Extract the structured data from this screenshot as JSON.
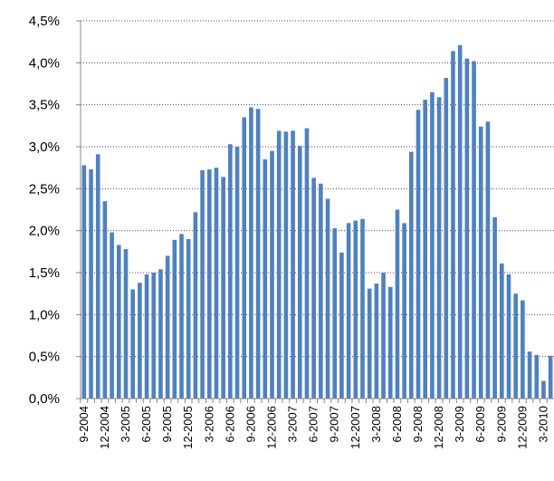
{
  "chart_data": {
    "type": "bar",
    "categories": [
      "9-2004",
      null,
      null,
      "12-2004",
      null,
      null,
      "3-2005",
      null,
      null,
      "6-2005",
      null,
      null,
      "9-2005",
      null,
      null,
      "12-2005",
      null,
      null,
      "3-2006",
      null,
      null,
      "6-2006",
      null,
      null,
      "9-2006",
      null,
      null,
      "12-2006",
      null,
      null,
      "3-2007",
      null,
      null,
      "6-2007",
      null,
      null,
      "9-2007",
      null,
      null,
      "12-2007",
      null,
      null,
      "3-2008",
      null,
      null,
      "6-2008",
      null,
      null,
      "9-2008",
      null,
      null,
      "12-2008",
      null,
      null,
      "3-2009",
      null,
      null,
      "6-2009",
      null,
      null,
      "9-2009",
      null,
      null,
      "12-2009",
      null,
      null,
      "3-2010",
      null
    ],
    "values": [
      2.78,
      2.73,
      2.91,
      2.35,
      1.98,
      1.83,
      1.78,
      1.3,
      1.38,
      1.48,
      1.5,
      1.54,
      1.7,
      1.89,
      1.96,
      1.9,
      2.22,
      2.72,
      2.73,
      2.75,
      2.64,
      3.03,
      3.0,
      3.35,
      3.47,
      3.45,
      2.85,
      2.95,
      3.19,
      3.18,
      3.19,
      3.01,
      3.22,
      2.63,
      2.56,
      2.38,
      2.03,
      1.74,
      2.09,
      2.12,
      2.14,
      1.31,
      1.37,
      1.5,
      1.33,
      2.25,
      2.09,
      2.94,
      3.44,
      3.56,
      3.65,
      3.59,
      3.82,
      4.14,
      4.21,
      4.05,
      4.02,
      3.24,
      3.3,
      2.16,
      1.61,
      1.48,
      1.25,
      1.17,
      0.56,
      0.52,
      0.21,
      0.51
    ],
    "color": "#4f81bd",
    "ylim": [
      0,
      4.5
    ],
    "yticks": [
      {
        "value": 0,
        "label": "0,0%"
      },
      {
        "value": 0.5,
        "label": "0,5%"
      },
      {
        "value": 1,
        "label": "1,0%"
      },
      {
        "value": 1.5,
        "label": "1,5%"
      },
      {
        "value": 2,
        "label": "2,0%"
      },
      {
        "value": 2.5,
        "label": "2,5%"
      },
      {
        "value": 3,
        "label": "3,0%"
      },
      {
        "value": 3.5,
        "label": "3,5%"
      },
      {
        "value": 4,
        "label": "4,0%"
      },
      {
        "value": 4.5,
        "label": "4,5%"
      }
    ],
    "grid": true,
    "grid_color": "#7030a0"
  }
}
